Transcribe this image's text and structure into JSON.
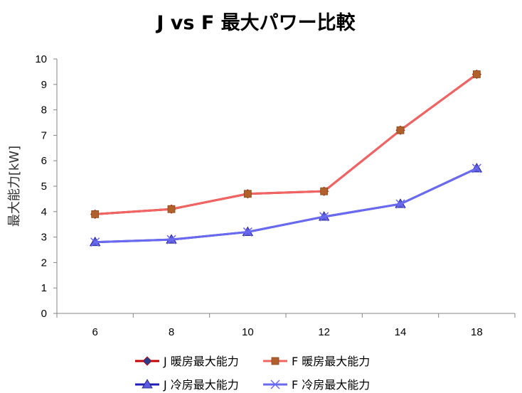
{
  "chart_data": {
    "type": "line",
    "title": "J vs F 最大パワー比較",
    "xlabel": "",
    "ylabel": "最大能力[kW]",
    "categories": [
      "6",
      "8",
      "10",
      "12",
      "14",
      "18"
    ],
    "ylim": [
      0,
      10
    ],
    "yticks": [
      "0",
      "1",
      "2",
      "3",
      "4",
      "5",
      "6",
      "7",
      "8",
      "9",
      "10"
    ],
    "grid": false,
    "legend_position": "bottom",
    "series": [
      {
        "name": "J 暖房最大能力",
        "values": [
          3.9,
          4.1,
          4.7,
          4.8,
          7.2,
          9.4
        ],
        "color": "#c00000",
        "marker": "diamond",
        "marker_color": "#2a3a8c"
      },
      {
        "name": "F 暖房最大能力",
        "values": [
          3.9,
          4.1,
          4.7,
          4.8,
          7.2,
          9.4
        ],
        "color": "#f06464",
        "marker": "square",
        "marker_color": "#b0602a"
      },
      {
        "name": "J 冷房最大能力",
        "values": [
          2.8,
          2.9,
          3.2,
          3.8,
          4.3,
          5.7
        ],
        "color": "#1f1fb8",
        "marker": "triangle",
        "marker_color": "#5a5ae0"
      },
      {
        "name": "F 冷房最大能力",
        "values": [
          2.8,
          2.9,
          3.2,
          3.8,
          4.3,
          5.7
        ],
        "color": "#6a6af0",
        "marker": "x",
        "marker_color": "#6a6af0"
      }
    ]
  }
}
